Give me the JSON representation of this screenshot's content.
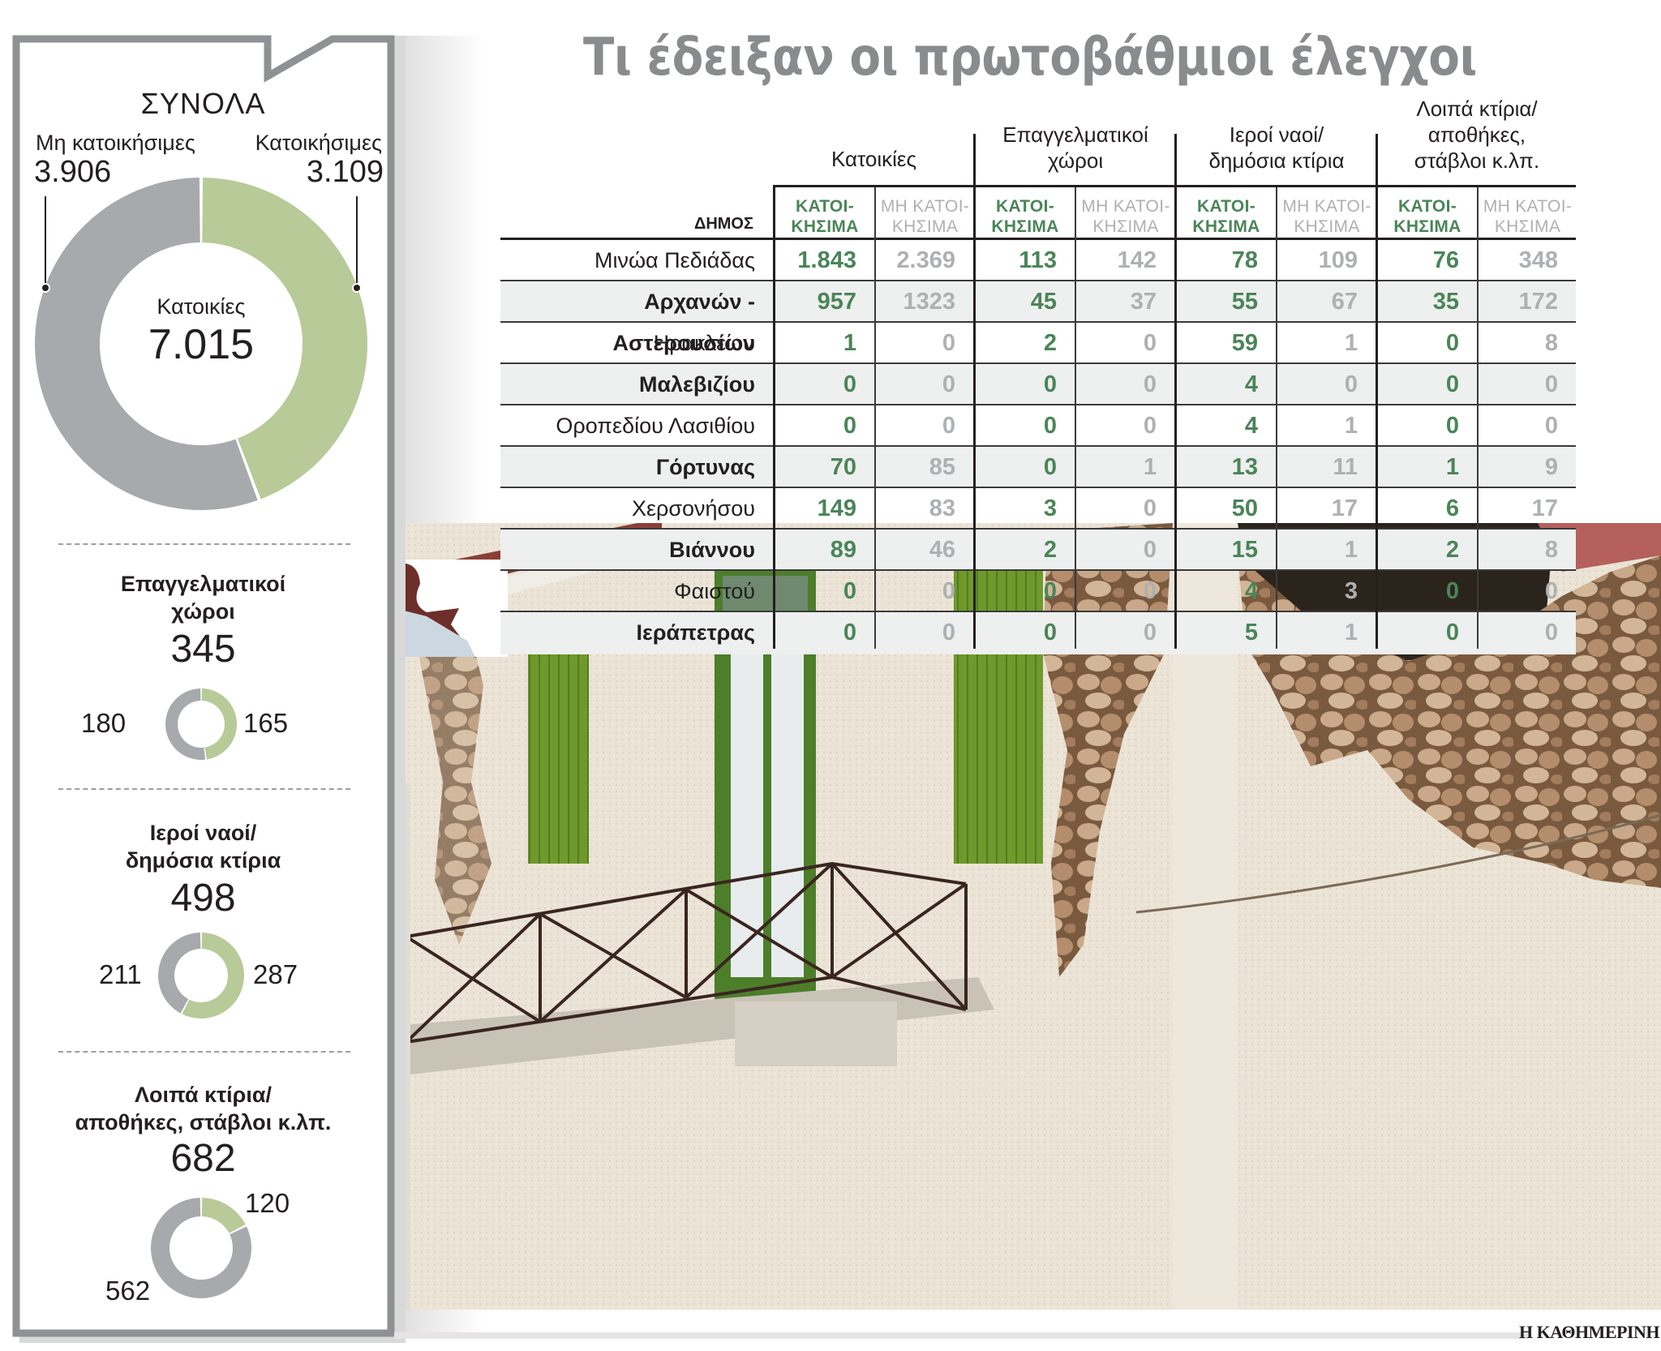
{
  "title": "Τι έδειξαν οι πρωτοβάθμιοι έλεγχοι",
  "colors": {
    "habitable": "#4a8558",
    "non_habitable": "#aeb0b2",
    "donut_green": "#b7ca98",
    "donut_gray": "#a7a9ac",
    "title_gray": "#8a8b8d",
    "panel_border": "#8f9194"
  },
  "totals_panel": {
    "heading": "ΣΥΝΟΛΑ",
    "left_label": "Μη κατοικήσιμες",
    "left_value": "3.906",
    "right_label": "Κατοικήσιμες",
    "right_value": "3.109",
    "center_label": "Κατοικίες",
    "center_value": "7.015",
    "sections": [
      {
        "title_line1": "Επαγγελματικοί",
        "title_line2": "χώροι",
        "total": "345",
        "non_habitable": "180",
        "habitable": "165"
      },
      {
        "title_line1": "Ιεροί ναοί/",
        "title_line2": "δημόσια κτίρια",
        "total": "498",
        "non_habitable": "211",
        "habitable": "287"
      },
      {
        "title_line1": "Λοιπά κτίρια/",
        "title_line2": "αποθήκες, στάβλοι κ.λπ.",
        "total": "682",
        "non_habitable": "562",
        "habitable": "120"
      }
    ]
  },
  "table": {
    "municipality_header": "ΔΗΜΟΣ",
    "groups": [
      {
        "label_line1": "",
        "label_line2": "",
        "label_line3": "Κατοικίες"
      },
      {
        "label_line1": "",
        "label_line2": "Επαγγελματικοί",
        "label_line3": "χώροι"
      },
      {
        "label_line1": "",
        "label_line2": "Ιεροί ναοί/",
        "label_line3": "δημόσια κτίρια"
      },
      {
        "label_line1": "Λοιπά κτίρια/",
        "label_line2": "αποθήκες,",
        "label_line3": "στάβλοι κ.λπ."
      }
    ],
    "sub_yes_line1": "ΚΑΤΟΙ-",
    "sub_yes_line2": "ΚΗΣΙΜΑ",
    "sub_no_line1": "ΜΗ ΚΑΤΟΙ-",
    "sub_no_line2": "ΚΗΣΙΜΑ",
    "rows": [
      {
        "name": "Μινώα Πεδιάδας",
        "bold": false,
        "values": [
          "1.843",
          "2.369",
          "113",
          "142",
          "78",
          "109",
          "76",
          "348"
        ]
      },
      {
        "name": "Αρχανών - Αστερουσίων",
        "bold": true,
        "values": [
          "957",
          "1323",
          "45",
          "37",
          "55",
          "67",
          "35",
          "172"
        ]
      },
      {
        "name": "Ηρακλείου",
        "bold": false,
        "values": [
          "1",
          "0",
          "2",
          "0",
          "59",
          "1",
          "0",
          "8"
        ]
      },
      {
        "name": "Μαλεβιζίου",
        "bold": true,
        "values": [
          "0",
          "0",
          "0",
          "0",
          "4",
          "0",
          "0",
          "0"
        ]
      },
      {
        "name": "Οροπεδίου Λασιθίου",
        "bold": false,
        "values": [
          "0",
          "0",
          "0",
          "0",
          "4",
          "1",
          "0",
          "0"
        ]
      },
      {
        "name": "Γόρτυνας",
        "bold": true,
        "values": [
          "70",
          "85",
          "0",
          "1",
          "13",
          "11",
          "1",
          "9"
        ]
      },
      {
        "name": "Χερσονήσου",
        "bold": false,
        "values": [
          "149",
          "83",
          "3",
          "0",
          "50",
          "17",
          "6",
          "17"
        ]
      },
      {
        "name": "Βιάννου",
        "bold": true,
        "values": [
          "89",
          "46",
          "2",
          "0",
          "15",
          "1",
          "2",
          "8"
        ]
      },
      {
        "name": "Φαιστού",
        "bold": false,
        "values": [
          "0",
          "0",
          "0",
          "0",
          "4",
          "3",
          "0",
          "0"
        ]
      },
      {
        "name": "Ιεράπετρας",
        "bold": true,
        "values": [
          "0",
          "0",
          "0",
          "0",
          "5",
          "1",
          "0",
          "0"
        ]
      }
    ]
  },
  "credit": "Η ΚΑΘΗΜΕΡΙΝΗ",
  "chart_data": [
    {
      "type": "pie",
      "title": "ΣΥΝΟΛΑ — Κατοικίες",
      "total": 7015,
      "categories": [
        "Μη κατοικήσιμες",
        "Κατοικήσιμες"
      ],
      "values": [
        3906,
        3109
      ],
      "colors": [
        "#a7a9ac",
        "#b7ca98"
      ],
      "donut": true
    },
    {
      "type": "pie",
      "title": "Επαγγελματικοί χώροι",
      "total": 345,
      "categories": [
        "Μη κατοικήσιμα",
        "Κατοικήσιμα"
      ],
      "values": [
        180,
        165
      ],
      "colors": [
        "#a7a9ac",
        "#b7ca98"
      ],
      "donut": true
    },
    {
      "type": "pie",
      "title": "Ιεροί ναοί/δημόσια κτίρια",
      "total": 498,
      "categories": [
        "Μη κατοικήσιμα",
        "Κατοικήσιμα"
      ],
      "values": [
        211,
        287
      ],
      "colors": [
        "#a7a9ac",
        "#b7ca98"
      ],
      "donut": true
    },
    {
      "type": "pie",
      "title": "Λοιπά κτίρια/αποθήκες, στάβλοι κ.λπ.",
      "total": 682,
      "categories": [
        "Μη κατοικήσιμα",
        "Κατοικήσιμα"
      ],
      "values": [
        562,
        120
      ],
      "colors": [
        "#a7a9ac",
        "#b7ca98"
      ],
      "donut": true
    },
    {
      "type": "table",
      "title": "Τι έδειξαν οι πρωτοβάθμιοι έλεγχοι",
      "columns": [
        "ΔΗΜΟΣ",
        "Κατοικίες ΚΑΤΟΙΚΗΣΙΜΑ",
        "Κατοικίες ΜΗ ΚΑΤΟΙΚΗΣΙΜΑ",
        "Επαγγελματικοί χώροι ΚΑΤΟΙΚΗΣΙΜΑ",
        "Επαγγελματικοί χώροι ΜΗ ΚΑΤΟΙΚΗΣΙΜΑ",
        "Ιεροί ναοί/δημόσια κτίρια ΚΑΤΟΙΚΗΣΙΜΑ",
        "Ιεροί ναοί/δημόσια κτίρια ΜΗ ΚΑΤΟΙΚΗΣΙΜΑ",
        "Λοιπά κτίρια ΚΑΤΟΙΚΗΣΙΜΑ",
        "Λοιπά κτίρια ΜΗ ΚΑΤΟΙΚΗΣΙΜΑ"
      ],
      "rows": [
        [
          "Μινώα Πεδιάδας",
          1843,
          2369,
          113,
          142,
          78,
          109,
          76,
          348
        ],
        [
          "Αρχανών - Αστερουσίων",
          957,
          1323,
          45,
          37,
          55,
          67,
          35,
          172
        ],
        [
          "Ηρακλείου",
          1,
          0,
          2,
          0,
          59,
          1,
          0,
          8
        ],
        [
          "Μαλεβιζίου",
          0,
          0,
          0,
          0,
          4,
          0,
          0,
          0
        ],
        [
          "Οροπεδίου Λασιθίου",
          0,
          0,
          0,
          0,
          4,
          1,
          0,
          0
        ],
        [
          "Γόρτυνας",
          70,
          85,
          0,
          1,
          13,
          11,
          1,
          9
        ],
        [
          "Χερσονήσου",
          149,
          83,
          3,
          0,
          50,
          17,
          6,
          17
        ],
        [
          "Βιάννου",
          89,
          46,
          2,
          0,
          15,
          1,
          2,
          8
        ],
        [
          "Φαιστού",
          0,
          0,
          0,
          0,
          4,
          3,
          0,
          0
        ],
        [
          "Ιεράπετρας",
          0,
          0,
          0,
          0,
          5,
          1,
          0,
          0
        ]
      ]
    }
  ]
}
